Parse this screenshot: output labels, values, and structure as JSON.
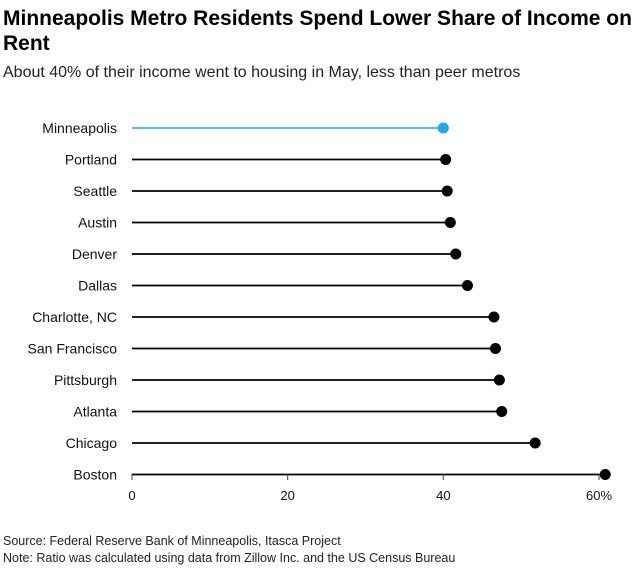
{
  "chart_data": {
    "type": "lollipop",
    "title": "Minneapolis Metro Residents Spend Lower Share of Income on Rent",
    "subtitle": "About 40% of their income went to housing in May, less than peer metros",
    "categories": [
      "Minneapolis",
      "Portland",
      "Seattle",
      "Austin",
      "Denver",
      "Dallas",
      "Charlotte, NC",
      "San Francisco",
      "Pittsburgh",
      "Atlanta",
      "Chicago",
      "Boston"
    ],
    "values": [
      40.0,
      40.3,
      40.5,
      40.9,
      41.6,
      43.1,
      46.5,
      46.7,
      47.2,
      47.5,
      51.8,
      60.8
    ],
    "highlight": "Minneapolis",
    "xlim": [
      0,
      60
    ],
    "xticks": [
      "0",
      "20",
      "40",
      "60%"
    ],
    "xtick_values": [
      0,
      20,
      40,
      60
    ],
    "xlabel": "",
    "ylabel": "",
    "colors": {
      "highlight": "#1aa7ec",
      "default": "#000000"
    }
  },
  "footer": {
    "source": "Source: Federal Reserve Bank of Minneapolis, Itasca Project",
    "note": "Note: Ratio was calculated using data from Zillow Inc. and the US Census Bureau"
  }
}
